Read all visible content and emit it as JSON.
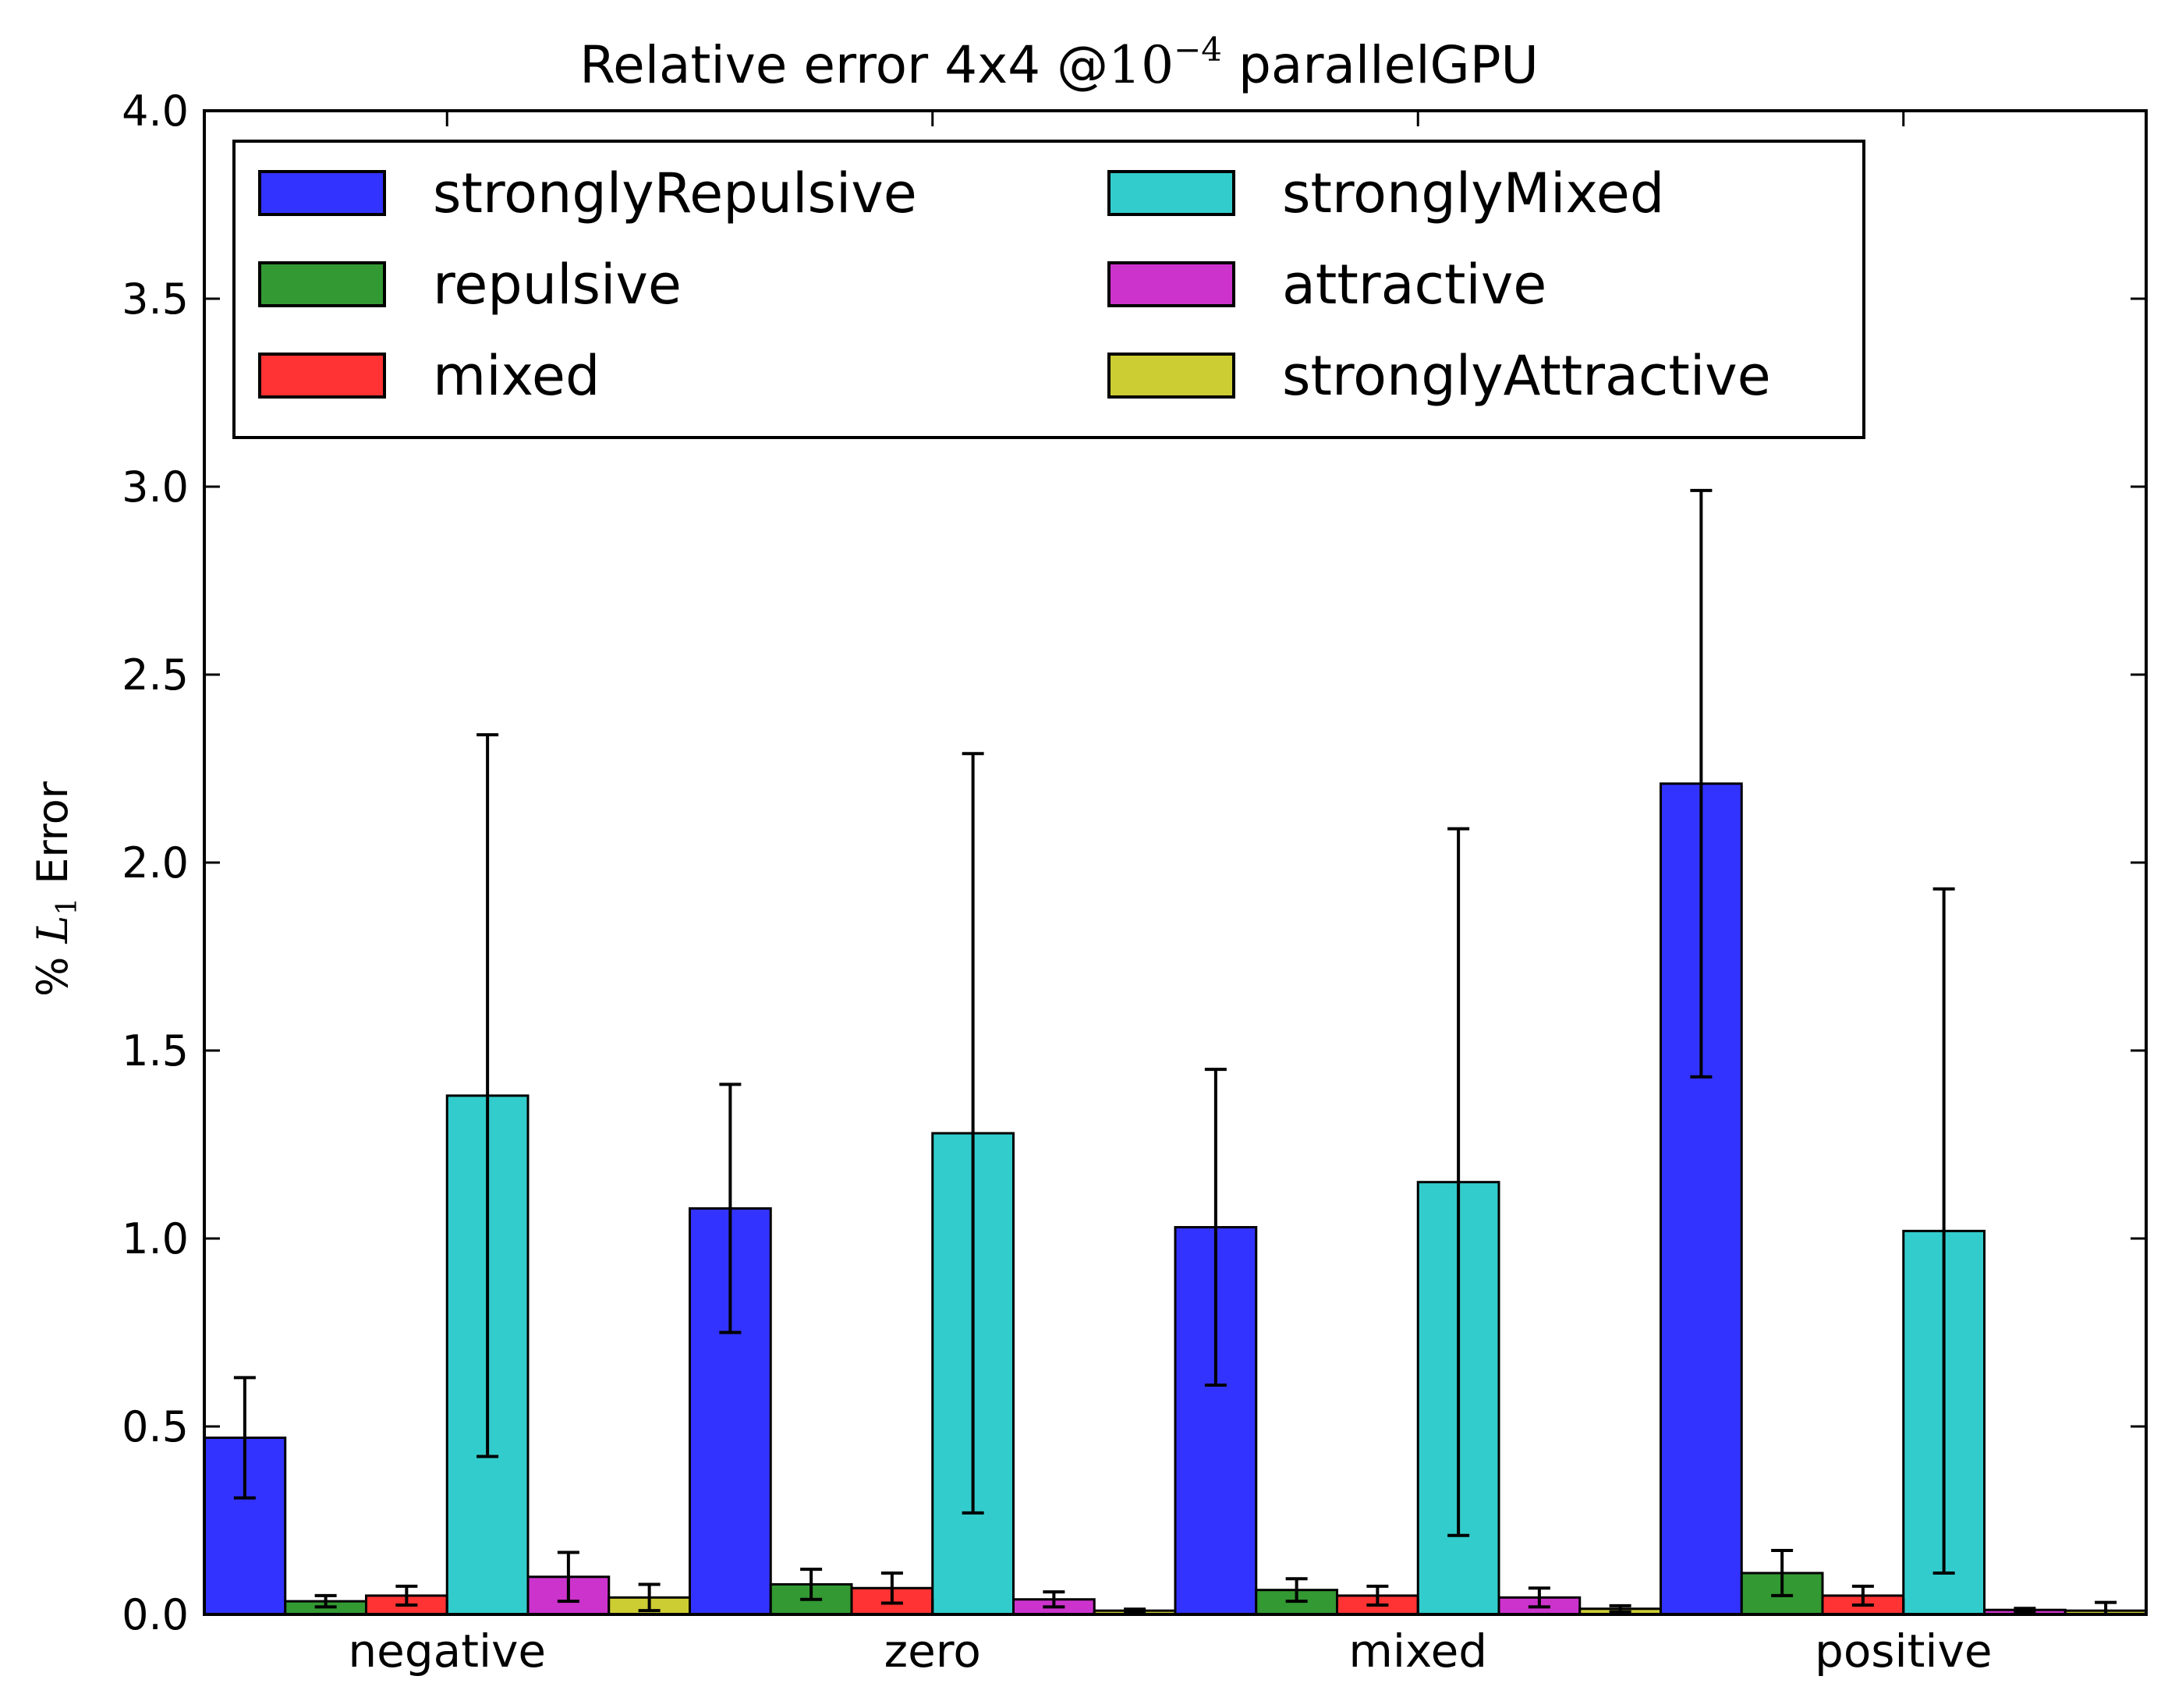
{
  "chart_data": {
    "type": "bar",
    "title": "Relative error 4x4 @10⁻⁴ parallelGPU",
    "title_parts": {
      "prefix": "Relative error 4x4 @",
      "base": "10",
      "exponent": "−4",
      "suffix": " parallelGPU"
    },
    "ylabel": "% L1 Error",
    "ylabel_parts": {
      "prefix": "% ",
      "symbol": "L",
      "subscript": "1",
      "suffix": " Error"
    },
    "xlabel": "",
    "ylim": [
      0,
      4.0
    ],
    "yticks": [
      "0.0",
      "0.5",
      "1.0",
      "1.5",
      "2.0",
      "2.5",
      "3.0",
      "3.5",
      "4.0"
    ],
    "categories": [
      "negative",
      "zero",
      "mixed",
      "positive"
    ],
    "legend_position": "top-left",
    "grid": false,
    "series": [
      {
        "name": "stronglyRepulsive",
        "color": "#3333ff",
        "values": [
          0.47,
          1.08,
          1.03,
          2.21
        ],
        "errors": [
          0.16,
          0.33,
          0.42,
          0.78
        ]
      },
      {
        "name": "repulsive",
        "color": "#339933",
        "values": [
          0.035,
          0.08,
          0.065,
          0.11
        ],
        "errors": [
          0.015,
          0.04,
          0.03,
          0.06
        ]
      },
      {
        "name": "mixed",
        "color": "#ff3333",
        "values": [
          0.05,
          0.07,
          0.05,
          0.05
        ],
        "errors": [
          0.025,
          0.04,
          0.025,
          0.025
        ]
      },
      {
        "name": "stronglyMixed",
        "color": "#33cccc",
        "values": [
          1.38,
          1.28,
          1.15,
          1.02
        ],
        "errors": [
          0.96,
          1.01,
          0.94,
          0.91
        ]
      },
      {
        "name": "attractive",
        "color": "#cc33cc",
        "values": [
          0.1,
          0.04,
          0.045,
          0.012
        ],
        "errors": [
          0.065,
          0.02,
          0.025,
          0.004
        ]
      },
      {
        "name": "stronglyAttractive",
        "color": "#cccc33",
        "values": [
          0.045,
          0.01,
          0.015,
          0.01
        ],
        "errors": [
          0.035,
          0.004,
          0.008,
          0.022
        ]
      }
    ]
  }
}
